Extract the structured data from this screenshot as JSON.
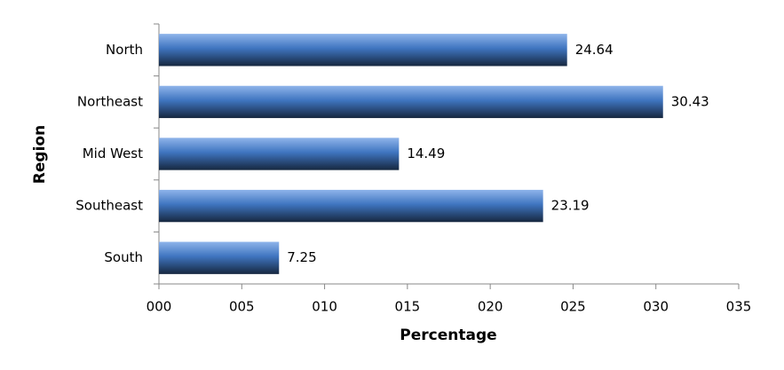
{
  "chart_data": {
    "type": "bar",
    "orientation": "horizontal",
    "x_label": "Percentage",
    "y_label": "Region",
    "categories": [
      "North",
      "Northeast",
      "Mid West",
      "Southeast",
      "South"
    ],
    "values": [
      24.64,
      30.43,
      14.49,
      23.19,
      7.25
    ],
    "color": "#3f75c0",
    "xlim": [
      0,
      35
    ],
    "xticks": [
      {
        "value": 0,
        "label": "000"
      },
      {
        "value": 5,
        "label": "005"
      },
      {
        "value": 10,
        "label": "010"
      },
      {
        "value": 15,
        "label": "015"
      },
      {
        "value": 20,
        "label": "020"
      },
      {
        "value": 25,
        "label": "025"
      },
      {
        "value": 30,
        "label": "030"
      },
      {
        "value": 35,
        "label": "035"
      }
    ],
    "grid": false
  }
}
